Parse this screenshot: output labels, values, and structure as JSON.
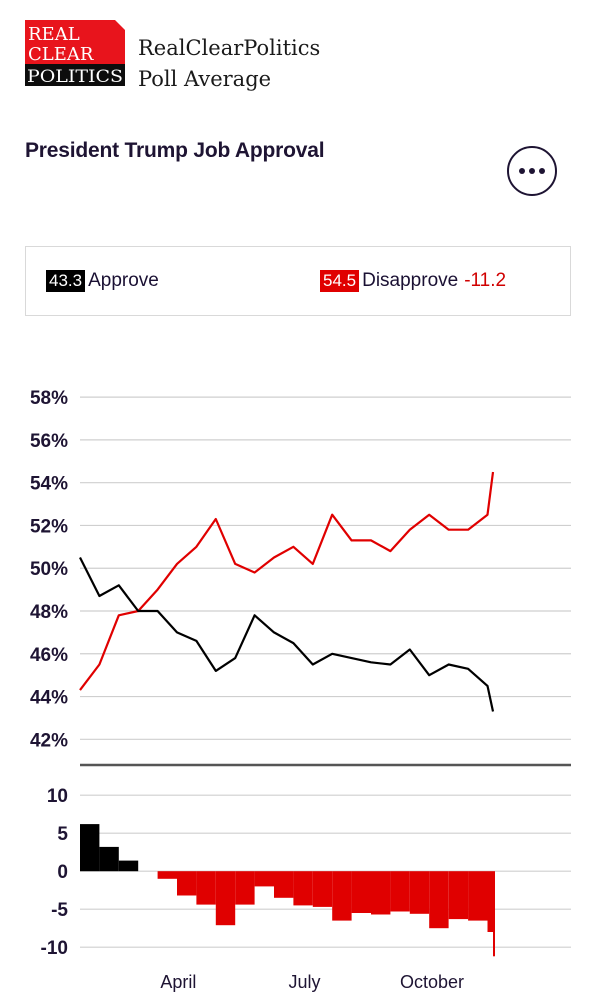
{
  "header": {
    "logo_lines": [
      "REAL",
      "CLEAR",
      "POLITICS"
    ],
    "brand_line1": "RealClearPolitics",
    "brand_line2": "Poll Average"
  },
  "title": "President Trump Job Approval",
  "menu_icon": "more-horizontal-icon",
  "summary": {
    "approve_value": "43.3",
    "approve_label": "Approve",
    "disapprove_value": "54.5",
    "disapprove_label": "Disapprove",
    "spread": "-11.2"
  },
  "colors": {
    "approve": "#000000",
    "disapprove": "#e00000",
    "logo_red": "#e8141c"
  },
  "chart_data": {
    "type": "line",
    "x": [
      0,
      14,
      28,
      42,
      56,
      70,
      84,
      98,
      112,
      126,
      140,
      154,
      168,
      182,
      196,
      210,
      224,
      238,
      252,
      266,
      280,
      294,
      298
    ],
    "x_ticks": [
      {
        "label": "April",
        "x": 71
      },
      {
        "label": "July",
        "x": 162
      },
      {
        "label": "October",
        "x": 254
      }
    ],
    "series": [
      {
        "name": "Approve",
        "values": [
          50.5,
          48.7,
          49.2,
          48.0,
          48.0,
          47.0,
          46.6,
          45.2,
          45.8,
          47.8,
          47.0,
          46.5,
          45.5,
          46.0,
          45.8,
          45.6,
          45.5,
          46.2,
          45.0,
          45.5,
          45.3,
          44.5,
          43.3
        ]
      },
      {
        "name": "Disapprove",
        "values": [
          44.3,
          45.5,
          47.8,
          48.0,
          49.0,
          50.2,
          51.0,
          52.3,
          50.2,
          49.8,
          50.5,
          51.0,
          50.2,
          52.5,
          51.3,
          51.3,
          50.8,
          51.8,
          52.5,
          51.8,
          51.8,
          52.5,
          54.5
        ]
      }
    ],
    "ylim": [
      40.8,
      58.8
    ],
    "y_ticks": [
      "58%",
      "56%",
      "54%",
      "52%",
      "50%",
      "48%",
      "46%",
      "44%",
      "42%"
    ],
    "spread_ylim": [
      -13,
      12
    ],
    "spread_ticks": [
      "10",
      "5",
      "0",
      "-5",
      "-10"
    ],
    "grid": true
  }
}
